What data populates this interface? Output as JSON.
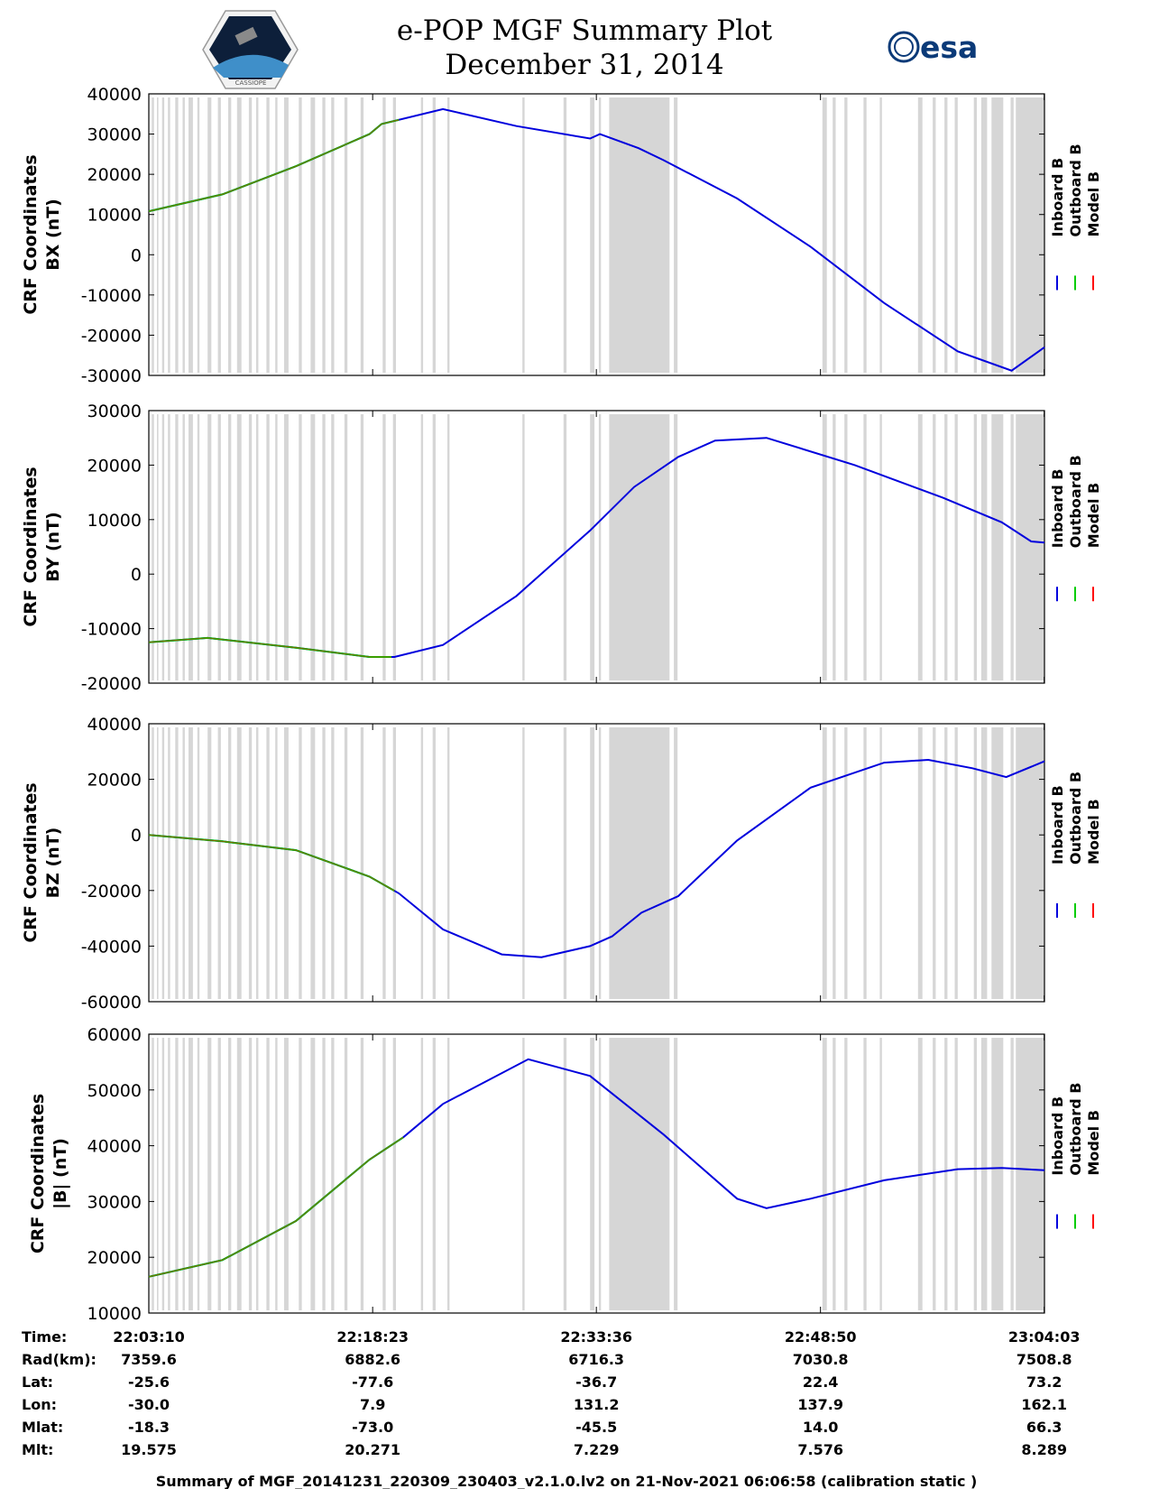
{
  "title": {
    "line1": "e-POP MGF Summary Plot",
    "line2": "December 31, 2014"
  },
  "logos": {
    "left": "cassiope-mission-logo",
    "right_text": "esa",
    "left_caption": "CASSIOPE"
  },
  "colors": {
    "inboard": "#0000dd",
    "outboard": "#00cc00",
    "model": "#ff0000",
    "gap": "#d6d6d6"
  },
  "legend": {
    "inboard": "Inboard B",
    "outboard": "Outboard B",
    "model": "Model B"
  },
  "chart_data": [
    {
      "type": "line",
      "ylabel1": "CRF Coordinates",
      "ylabel2": "BX (nT)",
      "ylim": [
        -30000,
        40000
      ],
      "yticks": [
        "40000",
        "30000",
        "20000",
        "10000",
        "0",
        "-10000",
        "-20000",
        "-30000"
      ],
      "x_minutes": [
        0,
        5,
        10,
        15,
        15.83,
        20,
        25,
        30,
        30.67,
        33.3,
        35,
        40,
        45,
        50,
        55,
        58.67,
        60.9
      ],
      "y": [
        10800,
        15000,
        22000,
        30000,
        32500,
        36200,
        32000,
        28900,
        30000,
        26500,
        23500,
        14000,
        2000,
        -12000,
        -24000,
        -28800,
        -23000
      ],
      "outboard_until_minute": 17
    },
    {
      "type": "line",
      "ylabel1": "CRF Coordinates",
      "ylabel2": "BY (nT)",
      "ylim": [
        -20000,
        30000
      ],
      "yticks": [
        "30000",
        "20000",
        "10000",
        "0",
        "-10000",
        "-20000"
      ],
      "x_minutes": [
        0,
        4,
        10,
        15,
        16.7,
        20,
        25,
        30,
        33,
        36,
        38.5,
        42,
        48,
        54,
        58,
        60,
        60.9
      ],
      "y": [
        -12500,
        -11700,
        -13500,
        -15200,
        -15200,
        -13000,
        -4000,
        8000,
        16000,
        21500,
        24500,
        25000,
        20000,
        14000,
        9500,
        6000,
        5800
      ],
      "outboard_until_minute": 16.5
    },
    {
      "type": "line",
      "ylabel1": "CRF Coordinates",
      "ylabel2": "BZ (nT)",
      "ylim": [
        -60000,
        40000
      ],
      "yticks": [
        "40000",
        "20000",
        "0",
        "-20000",
        "-40000",
        "-60000"
      ],
      "x_minutes": [
        0,
        5,
        10,
        15,
        17,
        20,
        24,
        26.7,
        30,
        31.5,
        33.5,
        36,
        40,
        45,
        50,
        53,
        56,
        58.3,
        60.9
      ],
      "y": [
        0,
        -2300,
        -5500,
        -15000,
        -21000,
        -34000,
        -43000,
        -44000,
        -40000,
        -36500,
        -28000,
        -22000,
        -2000,
        17000,
        26000,
        27000,
        24000,
        20800,
        26500
      ],
      "outboard_until_minute": 16.7
    },
    {
      "type": "line",
      "ylabel1": "CRF Coordinates",
      "ylabel2": "|B| (nT)",
      "ylim": [
        10000,
        60000
      ],
      "yticks": [
        "60000",
        "50000",
        "40000",
        "30000",
        "20000",
        "10000"
      ],
      "x_minutes": [
        0,
        5,
        10,
        15,
        17.3,
        20,
        25.8,
        30,
        35,
        40,
        42,
        45,
        50,
        55,
        58,
        60.9
      ],
      "y": [
        16500,
        19500,
        26500,
        37500,
        41500,
        47500,
        55500,
        52500,
        42000,
        30500,
        28800,
        30500,
        33800,
        35800,
        36000,
        35600
      ],
      "outboard_until_minute": 17.3
    }
  ],
  "xaxis": {
    "minutes": [
      0,
      15.22,
      30.43,
      45.67,
      60.88
    ],
    "labels": [
      "22:03:10",
      "22:18:23",
      "22:33:36",
      "22:48:50",
      "23:04:03"
    ]
  },
  "data_gaps_minutes": [
    [
      0.2,
      0.35
    ],
    [
      0.55,
      0.65
    ],
    [
      0.9,
      1.05
    ],
    [
      1.3,
      1.45
    ],
    [
      1.8,
      2.0
    ],
    [
      2.3,
      2.45
    ],
    [
      2.7,
      3.0
    ],
    [
      3.3,
      3.45
    ],
    [
      4.0,
      4.25
    ],
    [
      4.7,
      4.9
    ],
    [
      5.4,
      5.6
    ],
    [
      6.0,
      6.3
    ],
    [
      6.8,
      7.0
    ],
    [
      7.3,
      7.45
    ],
    [
      8.0,
      8.2
    ],
    [
      8.6,
      8.75
    ],
    [
      9.2,
      9.5
    ],
    [
      10.2,
      10.4
    ],
    [
      11.0,
      11.3
    ],
    [
      11.8,
      12.0
    ],
    [
      12.4,
      12.6
    ],
    [
      13.3,
      13.5
    ],
    [
      14.4,
      14.6
    ],
    [
      15.9,
      16.1
    ],
    [
      16.6,
      16.8
    ],
    [
      18.5,
      18.65
    ],
    [
      19.3,
      19.5
    ],
    [
      20.3,
      20.45
    ],
    [
      25.4,
      25.55
    ],
    [
      28.2,
      28.4
    ],
    [
      30.0,
      30.3
    ],
    [
      30.6,
      30.75
    ],
    [
      31.3,
      35.4
    ],
    [
      35.7,
      35.95
    ],
    [
      45.8,
      46.1
    ],
    [
      46.5,
      46.7
    ],
    [
      47.3,
      47.5
    ],
    [
      48.6,
      48.8
    ],
    [
      49.7,
      49.85
    ],
    [
      52.3,
      52.6
    ],
    [
      53.3,
      53.5
    ],
    [
      54.1,
      54.3
    ],
    [
      54.8,
      55.0
    ],
    [
      56.1,
      56.3
    ],
    [
      56.6,
      57.0
    ],
    [
      57.3,
      58.1
    ],
    [
      58.6,
      58.8
    ],
    [
      58.95,
      60.9
    ]
  ],
  "ephemeris": {
    "rows": [
      {
        "label": "Time:",
        "values": [
          "22:03:10",
          "22:18:23",
          "22:33:36",
          "22:48:50",
          "23:04:03"
        ]
      },
      {
        "label": "Rad(km):",
        "values": [
          "7359.6",
          "6882.6",
          "6716.3",
          "7030.8",
          "7508.8"
        ]
      },
      {
        "label": "Lat:",
        "values": [
          "-25.6",
          "-77.6",
          "-36.7",
          "22.4",
          "73.2"
        ]
      },
      {
        "label": "Lon:",
        "values": [
          "-30.0",
          "7.9",
          "131.2",
          "137.9",
          "162.1"
        ]
      },
      {
        "label": "Mlat:",
        "values": [
          "-18.3",
          "-73.0",
          "-45.5",
          "14.0",
          "66.3"
        ]
      },
      {
        "label": "Mlt:",
        "values": [
          "19.575",
          "20.271",
          "7.229",
          "7.576",
          "8.289"
        ]
      }
    ]
  },
  "footer": "Summary of MGF_20141231_220309_230403_v2.1.0.lv2 on 21-Nov-2021 06:06:58 (calibration static )"
}
